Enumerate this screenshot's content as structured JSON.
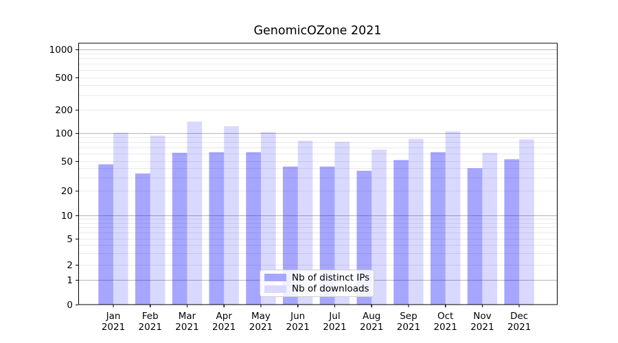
{
  "chart_data": {
    "type": "bar",
    "title": "GenomicOZone 2021",
    "categories": [
      "Jan 2021",
      "Feb 2021",
      "Mar 2021",
      "Apr 2021",
      "May 2021",
      "Jun 2021",
      "Jul 2021",
      "Aug 2021",
      "Sep 2021",
      "Oct 2021",
      "Nov 2021",
      "Dec 2021"
    ],
    "series": [
      {
        "name": "Nb of distinct IPs",
        "color": "rgba(0,0,255,0.35)",
        "color_hex": "#a6a6ff",
        "values": [
          45,
          34,
          61,
          62,
          62,
          42,
          42,
          37,
          51,
          62,
          40,
          52
        ]
      },
      {
        "name": "Nb of downloads",
        "color": "rgba(0,0,255,0.15)",
        "color_hex": "#d9d9ff",
        "values": [
          100,
          93,
          140,
          122,
          102,
          82,
          80,
          66,
          86,
          104,
          61,
          85
        ]
      }
    ],
    "xlabel": "",
    "ylabel": "",
    "yticks": [
      0,
      1,
      2,
      5,
      10,
      20,
      50,
      100,
      200,
      500,
      1000
    ],
    "ylim": [
      0,
      1200
    ],
    "yscale": "log-like (1-2-5 ticks with 0 baseline)",
    "grid": {
      "visible": true,
      "major_values": [
        1,
        10,
        100,
        1000
      ],
      "minor_values": [
        2,
        3,
        4,
        5,
        6,
        7,
        8,
        9,
        20,
        30,
        40,
        50,
        60,
        70,
        80,
        90,
        200,
        300,
        400,
        500,
        600,
        700,
        800,
        900
      ],
      "major_color": "#b3b3b3",
      "minor_color": "#e9e9e9"
    },
    "legend_position": "inside-bottom-center",
    "text_color": "#000000",
    "background_color": "#ffffff"
  }
}
